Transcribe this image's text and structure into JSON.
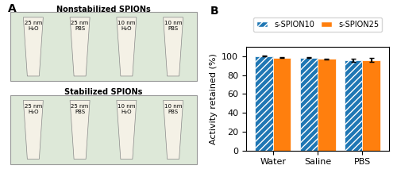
{
  "chart_data": {
    "type": "bar",
    "categories": [
      "Water",
      "Saline",
      "PBS"
    ],
    "series": [
      {
        "name": "s-SPION10",
        "values": [
          100.0,
          98.2,
          95.5
        ],
        "errors": [
          0.4,
          0.5,
          1.8
        ]
      },
      {
        "name": "s-SPION25",
        "values": [
          98.5,
          97.0,
          95.8
        ],
        "errors": [
          0.4,
          0.5,
          2.2
        ]
      }
    ],
    "y_label": "Activity retained (%)",
    "ylim": [
      0,
      110
    ],
    "yticks": [
      0,
      20,
      40,
      60,
      80,
      100
    ],
    "legend": "upper center",
    "annotations": [
      "A",
      "B",
      "Nonstabilized SPIONs",
      "Stabilized SPIONs",
      "25 nm\nH₂O",
      "25 nm\nPBS",
      "10 nm\nH₂O",
      "10 nm\nPBS"
    ]
  }
}
